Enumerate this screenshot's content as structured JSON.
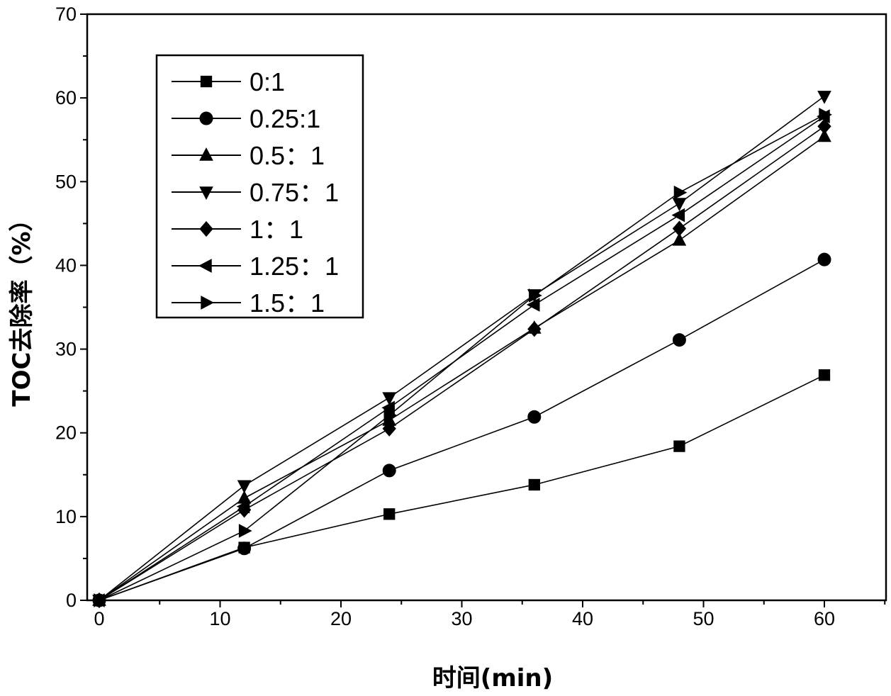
{
  "chart_data": {
    "type": "line",
    "title": "",
    "xlabel": "时间(min)",
    "ylabel": "TOC去除率（%）",
    "xlim": [
      0,
      65
    ],
    "ylim": [
      0,
      70
    ],
    "xticks": [
      0,
      10,
      20,
      30,
      40,
      50,
      60
    ],
    "yticks": [
      0,
      10,
      20,
      30,
      40,
      50,
      60,
      70
    ],
    "grid": false,
    "legend_position": "top-left",
    "x": [
      0,
      12,
      24,
      36,
      48,
      60
    ],
    "series": [
      {
        "name": "0:1",
        "marker": "square",
        "values": [
          0,
          6.3,
          10.3,
          13.8,
          18.4,
          26.9
        ]
      },
      {
        "name": "0.25:1",
        "marker": "circle",
        "values": [
          0,
          6.2,
          15.5,
          21.9,
          31.1,
          40.7
        ]
      },
      {
        "name": "0.5：1",
        "marker": "triangle-up",
        "values": [
          0,
          12.2,
          21.5,
          32.5,
          43.0,
          55.4
        ]
      },
      {
        "name": "0.75：1",
        "marker": "triangle-down",
        "values": [
          0,
          13.7,
          24.2,
          36.5,
          47.4,
          60.2
        ]
      },
      {
        "name": "1：1",
        "marker": "diamond",
        "values": [
          0,
          10.8,
          20.5,
          32.4,
          44.4,
          56.6
        ]
      },
      {
        "name": "1.25：1",
        "marker": "triangle-left",
        "values": [
          0,
          11.2,
          23.0,
          35.3,
          46.0,
          57.8
        ]
      },
      {
        "name": "1.5：1",
        "marker": "triangle-right",
        "values": [
          0,
          8.3,
          22.1,
          36.4,
          48.7,
          58.0
        ]
      }
    ]
  }
}
